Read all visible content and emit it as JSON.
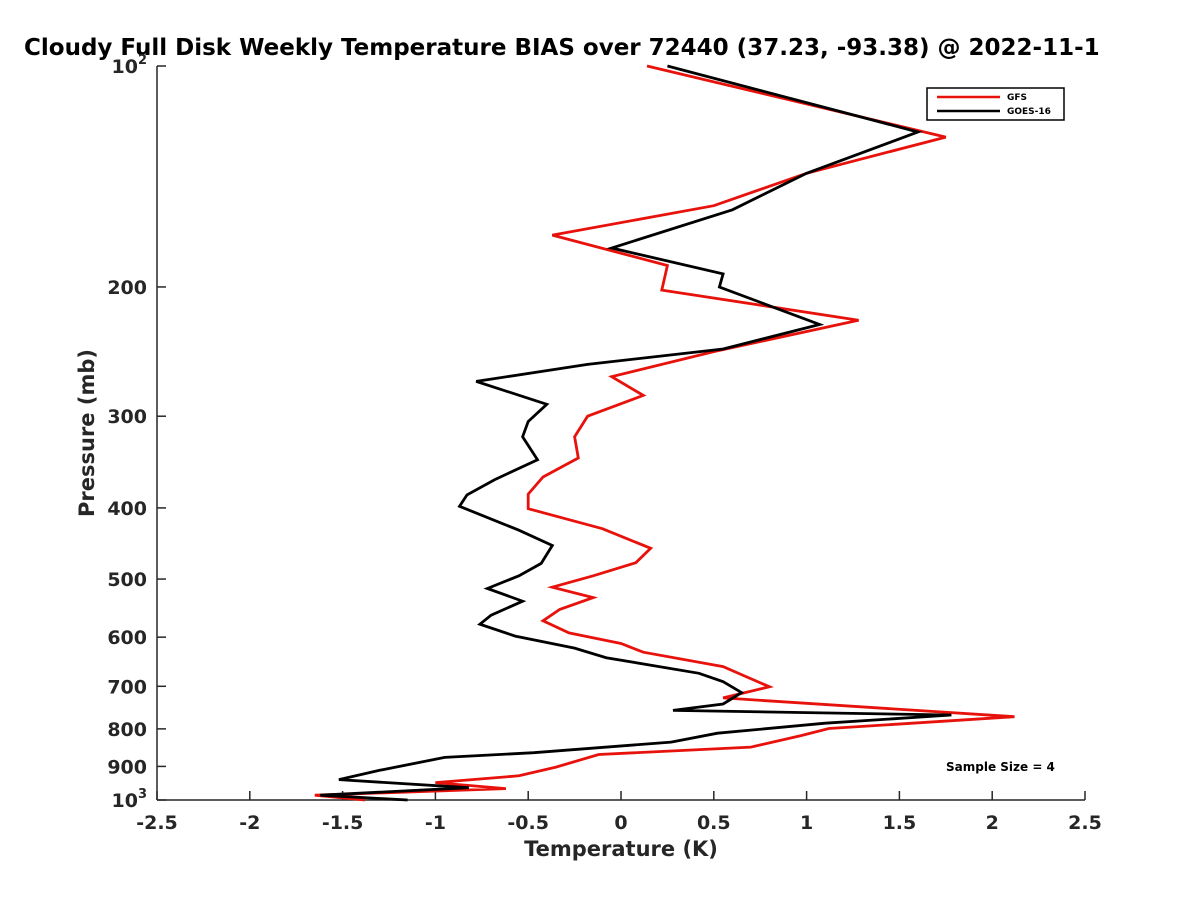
{
  "chart_data": {
    "type": "line",
    "title": "Cloudy Full Disk Weekly Temperature BIAS over 72440 (37.23, -93.38) @ 2022-11-1",
    "xlabel": "Temperature (K)",
    "ylabel": "Pressure (mb)",
    "xlim": [
      -2.5,
      2.5
    ],
    "ylim": [
      100,
      1000
    ],
    "y_scale": "log",
    "y_reversed": true,
    "grid": false,
    "legend_position": "top-right",
    "x_ticks": [
      "-2.5",
      "-2",
      "-1.5",
      "-1",
      "-0.5",
      "0",
      "0.5",
      "1",
      "1.5",
      "2",
      "2.5"
    ],
    "x_tick_values": [
      -2.5,
      -2,
      -1.5,
      -1,
      -0.5,
      0,
      0.5,
      1,
      1.5,
      2,
      2.5
    ],
    "y_ticks": [
      {
        "value": 100,
        "label": "10",
        "sup": "2"
      },
      {
        "value": 200,
        "label": "200"
      },
      {
        "value": 300,
        "label": "300"
      },
      {
        "value": 400,
        "label": "400"
      },
      {
        "value": 500,
        "label": "500"
      },
      {
        "value": 600,
        "label": "600"
      },
      {
        "value": 700,
        "label": "700"
      },
      {
        "value": 800,
        "label": "800"
      },
      {
        "value": 900,
        "label": "900"
      },
      {
        "value": 1000,
        "label": "10",
        "sup": "3"
      }
    ],
    "annotation": "Sample Size = 4",
    "series": [
      {
        "name": "GFS",
        "color": "#e8120c",
        "points": [
          [
            0.14,
            100
          ],
          [
            1.75,
            125
          ],
          [
            1.0,
            140
          ],
          [
            0.5,
            155
          ],
          [
            -0.37,
            170
          ],
          [
            0.25,
            187
          ],
          [
            0.22,
            202
          ],
          [
            1.28,
            222
          ],
          [
            0.5,
            245
          ],
          [
            -0.05,
            265
          ],
          [
            0.12,
            281
          ],
          [
            -0.18,
            300
          ],
          [
            -0.25,
            320
          ],
          [
            -0.23,
            342
          ],
          [
            -0.42,
            363
          ],
          [
            -0.5,
            383
          ],
          [
            -0.5,
            401
          ],
          [
            -0.1,
            427
          ],
          [
            0.16,
            454
          ],
          [
            0.08,
            475
          ],
          [
            -0.15,
            495
          ],
          [
            -0.37,
            513
          ],
          [
            -0.15,
            530
          ],
          [
            -0.33,
            550
          ],
          [
            -0.42,
            570
          ],
          [
            -0.28,
            592
          ],
          [
            0.0,
            612
          ],
          [
            0.12,
            629
          ],
          [
            0.55,
            658
          ],
          [
            0.68,
            680
          ],
          [
            0.8,
            701
          ],
          [
            0.55,
            726
          ],
          [
            2.12,
            770
          ],
          [
            1.12,
            799
          ],
          [
            0.97,
            817
          ],
          [
            0.7,
            847
          ],
          [
            -0.12,
            867
          ],
          [
            -0.35,
            902
          ],
          [
            -0.55,
            927
          ],
          [
            -1.0,
            947
          ],
          [
            -0.62,
            965
          ],
          [
            -1.65,
            985
          ],
          [
            -1.38,
            1000
          ]
        ]
      },
      {
        "name": "GOES-16",
        "color": "#000000",
        "points": [
          [
            0.25,
            100
          ],
          [
            1.6,
            123
          ],
          [
            1.0,
            140
          ],
          [
            0.6,
            157
          ],
          [
            -0.05,
            177
          ],
          [
            0.55,
            192
          ],
          [
            0.53,
            200
          ],
          [
            1.07,
            225
          ],
          [
            0.55,
            243
          ],
          [
            -0.18,
            255
          ],
          [
            -0.78,
            269
          ],
          [
            -0.4,
            289
          ],
          [
            -0.5,
            305
          ],
          [
            -0.53,
            320
          ],
          [
            -0.45,
            344
          ],
          [
            -0.68,
            366
          ],
          [
            -0.83,
            384
          ],
          [
            -0.87,
            398
          ],
          [
            -0.55,
            429
          ],
          [
            -0.37,
            450
          ],
          [
            -0.43,
            476
          ],
          [
            -0.55,
            495
          ],
          [
            -0.72,
            515
          ],
          [
            -0.53,
            536
          ],
          [
            -0.7,
            560
          ],
          [
            -0.76,
            576
          ],
          [
            -0.57,
            598
          ],
          [
            -0.25,
            621
          ],
          [
            -0.08,
            640
          ],
          [
            0.42,
            672
          ],
          [
            0.55,
            690
          ],
          [
            0.65,
            714
          ],
          [
            0.55,
            740
          ],
          [
            0.28,
            755
          ],
          [
            1.78,
            766
          ],
          [
            1.1,
            786
          ],
          [
            0.52,
            811
          ],
          [
            0.27,
            834
          ],
          [
            -0.47,
            862
          ],
          [
            -0.95,
            875
          ],
          [
            -1.3,
            911
          ],
          [
            -1.52,
            938
          ],
          [
            -0.82,
            962
          ],
          [
            -1.62,
            985
          ],
          [
            -1.15,
            1000
          ]
        ]
      }
    ]
  }
}
